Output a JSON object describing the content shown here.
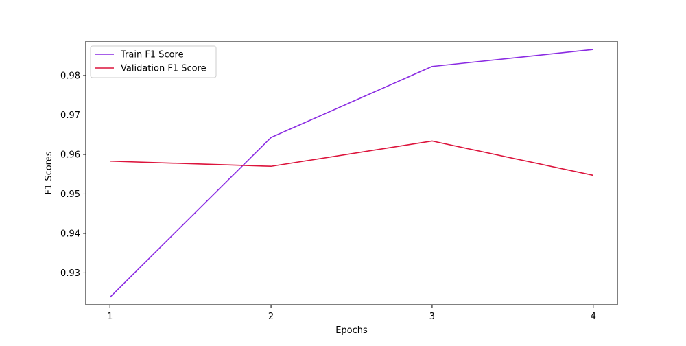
{
  "chart_data": {
    "type": "line",
    "title": "",
    "xlabel": "Epochs",
    "ylabel": "F1 Scores",
    "x": [
      1,
      2,
      3,
      4
    ],
    "xticks": [
      1,
      2,
      3,
      4
    ],
    "xlim": [
      0.85,
      4.15
    ],
    "yticks": [
      0.93,
      0.94,
      0.95,
      0.96,
      0.97,
      0.98
    ],
    "ytick_labels": [
      "0.93",
      "0.94",
      "0.95",
      "0.96",
      "0.97",
      "0.98"
    ],
    "ylim": [
      0.9219,
      0.9887
    ],
    "grid": false,
    "legend_position": "upper-left",
    "series": [
      {
        "name": "Train F1 Score",
        "color": "#8a2be2",
        "values": [
          0.9238,
          0.9643,
          0.9823,
          0.9866
        ]
      },
      {
        "name": "Validation F1 Score",
        "color": "#dc143c",
        "values": [
          0.9583,
          0.957,
          0.9634,
          0.9547
        ]
      }
    ]
  }
}
